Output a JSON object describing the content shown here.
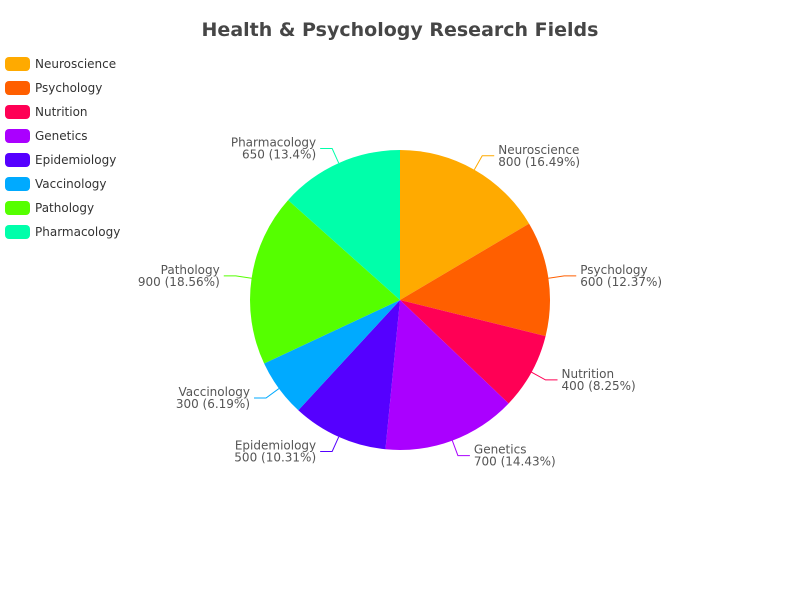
{
  "chart_data": {
    "type": "pie",
    "title": "Health & Psychology Research Fields",
    "legend_position": "top-left",
    "categories": [
      "Neuroscience",
      "Psychology",
      "Nutrition",
      "Genetics",
      "Epidemiology",
      "Vaccinology",
      "Pathology",
      "Pharmacology"
    ],
    "values": [
      800,
      600,
      400,
      700,
      500,
      300,
      900,
      650
    ],
    "labels": [
      "800 (16.49%)",
      "600 (12.37%)",
      "400 (8.25%)",
      "700 (14.43%)",
      "500 (10.31%)",
      "300 (6.19%)",
      "900 (18.56%)",
      "650 (13.4%)"
    ],
    "colors": [
      "#FFAA00",
      "#FF5F00",
      "#FF0055",
      "#AA00FF",
      "#5500FF",
      "#00AAFF",
      "#55FF00",
      "#00FFAA"
    ]
  }
}
